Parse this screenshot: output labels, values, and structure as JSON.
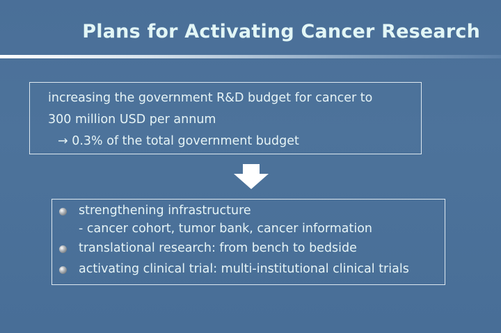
{
  "title": "Plans for Activating Cancer Research",
  "budget_box": {
    "lines": [
      "increasing the government R&D budget for cancer to",
      "300 million USD per annum",
      "→ 0.3% of the total government budget"
    ]
  },
  "arrow_icon": "down-arrow",
  "plans": [
    {
      "text": "strengthening infrastructure",
      "sub": "- cancer cohort, tumor bank, cancer information"
    },
    {
      "text": "translational research: from bench to bedside"
    },
    {
      "text": "activating clinical trial: multi-institutional clinical trials"
    }
  ]
}
